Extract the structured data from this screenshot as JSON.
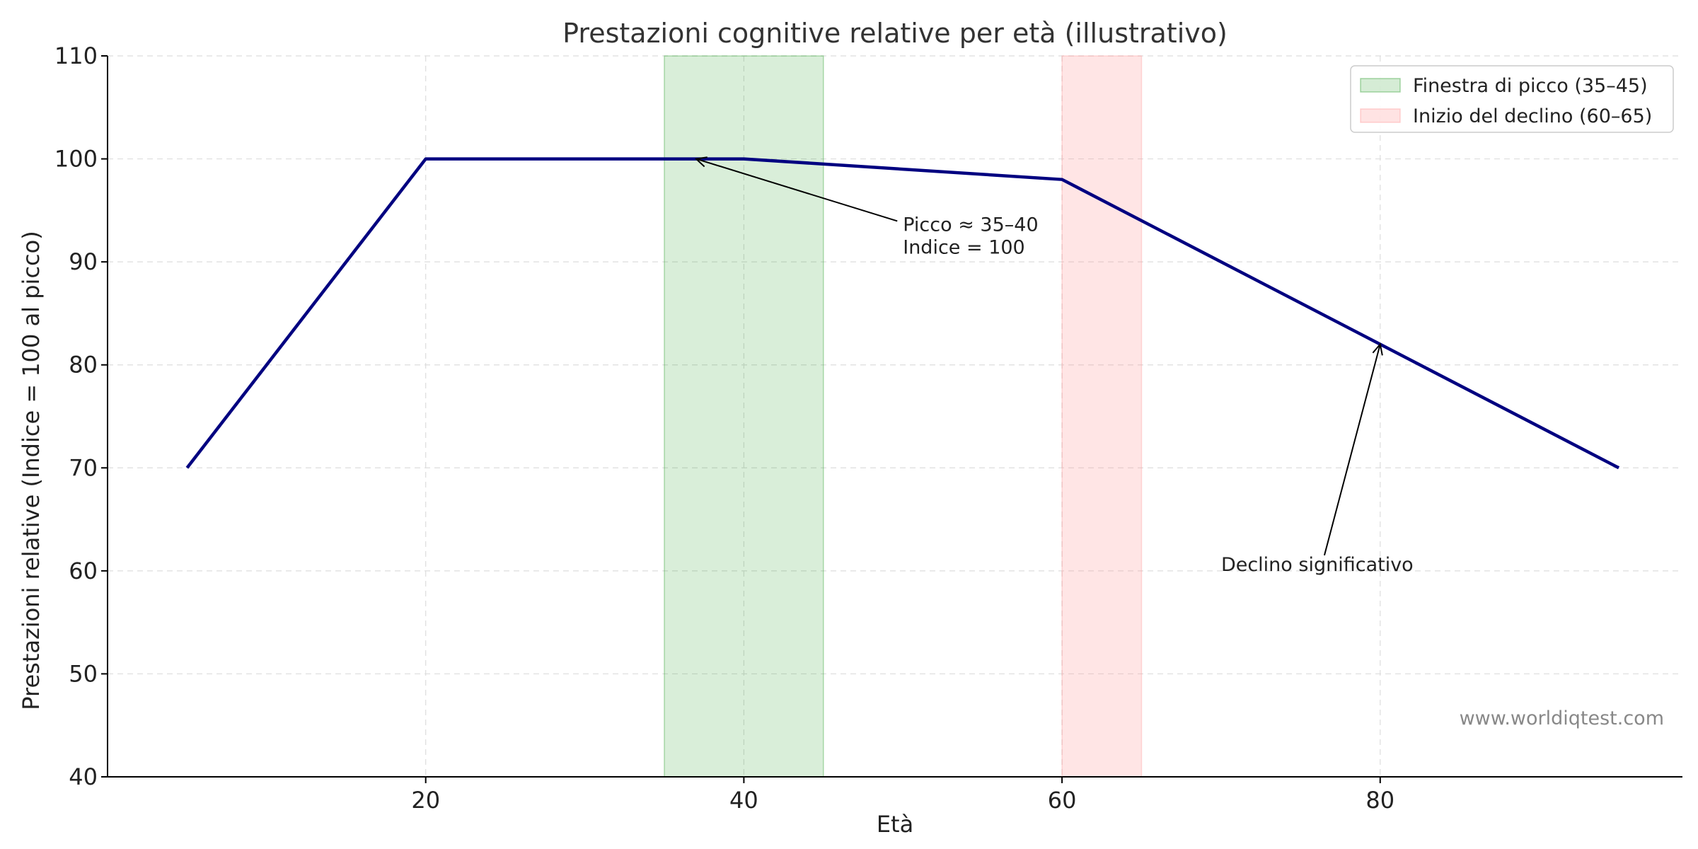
{
  "chart_data": {
    "type": "line",
    "title": "Prestazioni cognitive relative per età (illustrativo)",
    "xlabel": "Età",
    "ylabel": "Prestazioni relative (Indice = 100 al picco)",
    "xlim": [
      0,
      99
    ],
    "ylim": [
      40,
      110
    ],
    "x_ticks": [
      20,
      40,
      60,
      80
    ],
    "y_ticks": [
      40,
      50,
      60,
      70,
      80,
      90,
      100,
      110
    ],
    "grid": true,
    "legend_position": "top-right",
    "series": [
      {
        "color": "#000080",
        "x": [
          5,
          20,
          40,
          60,
          95
        ],
        "y": [
          70,
          100,
          100,
          98,
          70
        ]
      }
    ],
    "bands": [
      {
        "name": "Finestra di picco (35–45)",
        "x_start": 35,
        "x_end": 45,
        "color": "#2ca02c"
      },
      {
        "name": "Inizio del declino (60–65)",
        "x_start": 60,
        "x_end": 65,
        "color": "#ff9999"
      }
    ],
    "annotations": [
      {
        "lines": [
          "Picco ≈ 35–40",
          "Indice = 100"
        ],
        "text_x": 50,
        "text_y": 93,
        "arrow_x": 37,
        "arrow_y": 100
      },
      {
        "lines": [
          "Declino significativo"
        ],
        "text_x": 70,
        "text_y": 60,
        "arrow_x": 80,
        "arrow_y": 82
      }
    ]
  },
  "watermark": "www.worldiqtest.com"
}
